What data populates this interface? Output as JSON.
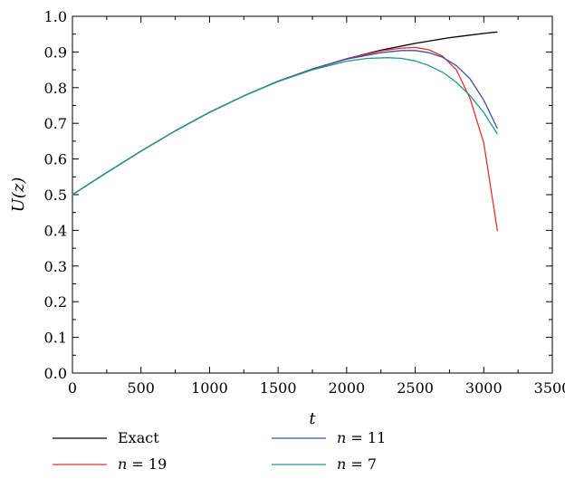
{
  "chart_data": {
    "type": "line",
    "xlabel": "t",
    "ylabel": "U(z)",
    "xlim": [
      0,
      3500
    ],
    "ylim": [
      0.0,
      1.0
    ],
    "xticks": [
      0,
      500,
      1000,
      1500,
      2000,
      2500,
      3000,
      3500
    ],
    "yticks": [
      0.0,
      0.1,
      0.2,
      0.3,
      0.4,
      0.5,
      0.6,
      0.7,
      0.8,
      0.9,
      1.0
    ],
    "xtick_labels": [
      "0",
      "500",
      "1000",
      "1500",
      "2000",
      "2500",
      "3000",
      "3500"
    ],
    "ytick_labels": [
      "0.0",
      "0.1",
      "0.2",
      "0.3",
      "0.4",
      "0.5",
      "0.6",
      "0.7",
      "0.8",
      "0.9",
      "1.0"
    ],
    "grid": false,
    "legend_position": "bottom",
    "series": [
      {
        "name": "Exact",
        "legend": {
          "var": "",
          "rest": "Exact"
        },
        "color": "#000000",
        "x": [
          0,
          250,
          500,
          750,
          1000,
          1250,
          1500,
          1750,
          2000,
          2250,
          2500,
          2750,
          3000,
          3100
        ],
        "y": [
          0.5,
          0.562,
          0.622,
          0.679,
          0.731,
          0.777,
          0.818,
          0.852,
          0.881,
          0.905,
          0.924,
          0.94,
          0.952,
          0.956
        ]
      },
      {
        "name": "n = 19",
        "legend": {
          "var": "n",
          "rest": " = 19"
        },
        "color": "#e8312f",
        "x": [
          0,
          250,
          500,
          750,
          1000,
          1250,
          1500,
          1750,
          2000,
          2250,
          2400,
          2500,
          2600,
          2700,
          2800,
          2900,
          3000,
          3100
        ],
        "y": [
          0.5,
          0.562,
          0.622,
          0.679,
          0.731,
          0.777,
          0.818,
          0.852,
          0.881,
          0.903,
          0.911,
          0.913,
          0.906,
          0.888,
          0.85,
          0.77,
          0.645,
          0.398
        ]
      },
      {
        "name": "n = 11",
        "legend": {
          "var": "n",
          "rest": " = 11"
        },
        "color": "#3d52a6",
        "x": [
          0,
          250,
          500,
          750,
          1000,
          1250,
          1500,
          1750,
          2000,
          2250,
          2400,
          2500,
          2600,
          2700,
          2800,
          2900,
          3000,
          3100
        ],
        "y": [
          0.5,
          0.562,
          0.622,
          0.679,
          0.731,
          0.777,
          0.818,
          0.852,
          0.88,
          0.898,
          0.904,
          0.904,
          0.898,
          0.885,
          0.862,
          0.825,
          0.765,
          0.685
        ]
      },
      {
        "name": "n = 7",
        "legend": {
          "var": "n",
          "rest": " = 7"
        },
        "color": "#1f9a8a",
        "x": [
          0,
          250,
          500,
          750,
          1000,
          1250,
          1500,
          1750,
          2000,
          2150,
          2300,
          2400,
          2500,
          2600,
          2700,
          2800,
          2900,
          3000,
          3100
        ],
        "y": [
          0.5,
          0.562,
          0.622,
          0.679,
          0.731,
          0.777,
          0.817,
          0.85,
          0.874,
          0.882,
          0.884,
          0.882,
          0.875,
          0.862,
          0.843,
          0.815,
          0.778,
          0.73,
          0.67
        ]
      }
    ]
  }
}
